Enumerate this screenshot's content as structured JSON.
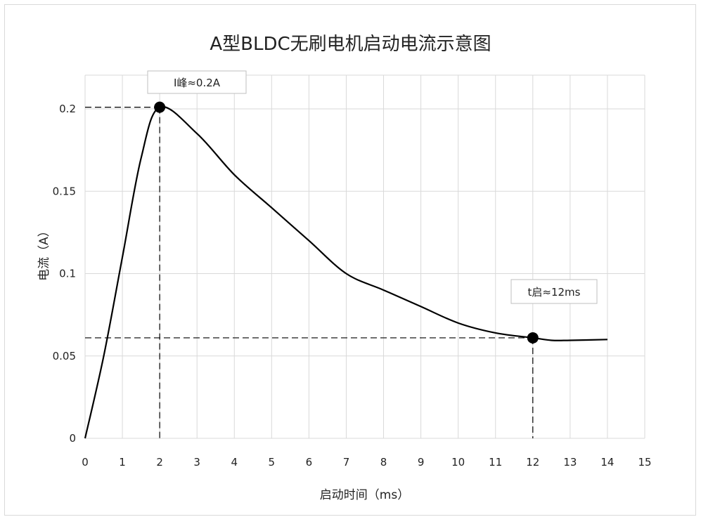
{
  "chart_data": {
    "type": "line",
    "title": "A型BLDC无刷电机启动电流示意图",
    "xlabel": "启动时间（ms）",
    "ylabel": "电流（A）",
    "xlim": [
      0,
      15
    ],
    "ylim": [
      0,
      0.2
    ],
    "x_ticks": [
      "0",
      "1",
      "2",
      "3",
      "4",
      "5",
      "6",
      "7",
      "8",
      "9",
      "10",
      "11",
      "12",
      "13",
      "14",
      "15"
    ],
    "y_ticks": [
      "0",
      "0.05",
      "0.1",
      "0.15",
      "0.2"
    ],
    "grid": true,
    "series": [
      {
        "x": [
          0,
          0.5,
          1,
          1.5,
          2,
          3,
          4,
          5,
          6,
          7,
          8,
          9,
          10,
          11,
          12,
          12.5,
          13,
          14
        ],
        "values": [
          0,
          0.05,
          0.11,
          0.17,
          0.201,
          0.185,
          0.16,
          0.14,
          0.12,
          0.1,
          0.09,
          0.08,
          0.07,
          0.064,
          0.061,
          0.0595,
          0.0595,
          0.06
        ],
        "color": "#000000"
      }
    ],
    "annotations": [
      {
        "text": "I峰≈0.2A",
        "x": 2,
        "y": 0.201,
        "color": "#000000"
      },
      {
        "text": "t启≈12ms",
        "x": 12,
        "y": 0.061,
        "color": "#000000"
      }
    ]
  }
}
